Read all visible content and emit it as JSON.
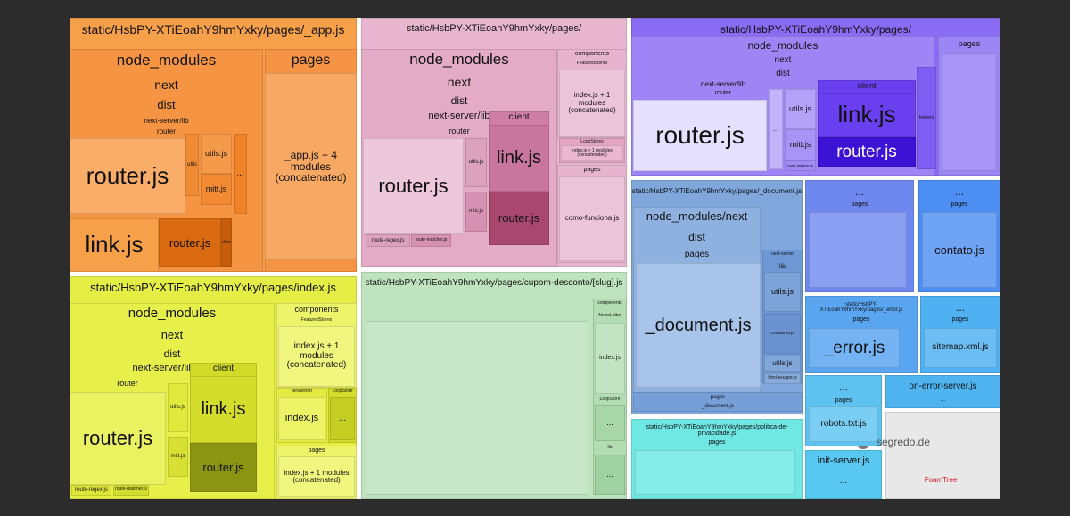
{
  "groups": [
    {
      "title": "static/HsbPY-XTiEoahY9hmYxky/pages/_app.js",
      "labels": [
        "node_modules",
        "next",
        "dist",
        "next-server/lib",
        "router",
        "router.js",
        "utils.js",
        "mitt.js",
        "...",
        "link.js",
        "router.js",
        "pages",
        "_app.js + 4 modules (concatenated)",
        "client",
        "utils"
      ]
    },
    {
      "title": "static/HsbPY-XTiEoahY9hmYxky/pages/",
      "labels": [
        "node_modules",
        "next",
        "dist",
        "next-server/lib",
        "router",
        "router.js",
        "client",
        "link.js",
        "router.js",
        "utils.js",
        "mitt.js",
        "route-regex.js",
        "route-matcher.js",
        "components",
        "FeaturedStores",
        "index.js + 1 modules (concatenated)",
        "LoopStores",
        "index.js + 1 modules (concatenated)",
        "pages",
        "como-funciona.js"
      ]
    },
    {
      "title": "static/HsbPY-XTiEoahY9hmYxky/pages/",
      "labels": [
        "node_modules",
        "next",
        "dist",
        "next-server/lib",
        "router",
        "router.js",
        "client",
        "link.js",
        "router.js",
        "utils.js",
        "mitt.js",
        "helpers",
        "pages",
        "...",
        "route-matcher.js"
      ]
    },
    {
      "title": "static/HsbPY-XTiEoahY9hmYxky/pages/index.js",
      "labels": [
        "node_modules",
        "next",
        "dist",
        "next-server/lib",
        "router",
        "router.js",
        "client",
        "link.js",
        "router.js",
        "utils.js",
        "mitt.js",
        "route-regex.js",
        "route-matcher.js",
        "components",
        "FeaturedStores",
        "index.js + 1 modules (concatenated)",
        "Newsletter",
        "index.js",
        "LoopStore",
        "...",
        "pages",
        "index.js + 1 modules (concatenated)"
      ]
    },
    {
      "title": "static/HsbPY-XTiEoahY9hmYxky/pages/cupom-desconto/[slug].js",
      "labels": [
        "components",
        "NewsLetter",
        "index.js",
        "LoopStore",
        "...",
        "lib",
        "..."
      ]
    },
    {
      "title": "static/HsbPY-XTiEoahY9hmYxky/pages/_document.js",
      "labels": [
        "node_modules/next",
        "dist",
        "pages",
        "_document.js",
        "next-server",
        "lib",
        "utils.js",
        "constants.js",
        "utils.js",
        "html-escape.js",
        "pages",
        "_document.js"
      ]
    },
    {
      "title": "static/HsbPY-XTiEoahY9hmYxky/pages/politica-de-privacidade.js",
      "labels": [
        "pages"
      ]
    },
    {
      "title": "...",
      "labels": [
        "pages"
      ]
    },
    {
      "title": "...",
      "labels": [
        "pages",
        "contato.js"
      ]
    },
    {
      "title": "static/HsbPY-XTiEoahY9hmYxky/pages/_error.js",
      "labels": [
        "pages",
        "_error.js"
      ]
    },
    {
      "title": "...",
      "labels": [
        "pages",
        "sitemap.xml.js"
      ]
    },
    {
      "title": "...",
      "labels": [
        "pages",
        "robots.txt.js"
      ]
    },
    {
      "title": "on-error-server.js",
      "labels": [
        "..."
      ]
    },
    {
      "title": "init-server.js",
      "labels": [
        "..."
      ]
    }
  ],
  "logo": "FoamTree",
  "watermark": "segredo.de"
}
